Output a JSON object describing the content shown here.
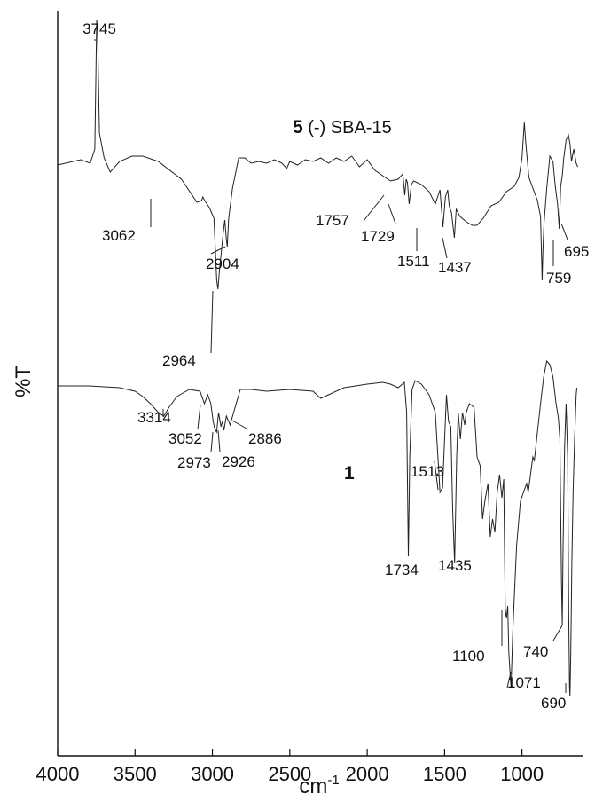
{
  "chart_data": {
    "type": "line",
    "xlabel": "cm",
    "xlabel_sup": "-1",
    "ylabel": "%T",
    "xlim": [
      4000,
      620
    ],
    "x_reversed": true,
    "xticks": [
      4000,
      3500,
      3000,
      2500,
      2000,
      1500,
      1000
    ],
    "grid": false,
    "series": [
      {
        "name_bold": "5",
        "name": " (-) SBA-15",
        "points": [
          [
            4000,
            0
          ],
          [
            3850,
            6
          ],
          [
            3790,
            2
          ],
          [
            3760,
            18
          ],
          [
            3748,
            164
          ],
          [
            3742,
            150
          ],
          [
            3730,
            36
          ],
          [
            3700,
            8
          ],
          [
            3660,
            -8
          ],
          [
            3600,
            4
          ],
          [
            3520,
            10
          ],
          [
            3450,
            10
          ],
          [
            3350,
            4
          ],
          [
            3200,
            -16
          ],
          [
            3100,
            -42
          ],
          [
            3070,
            -40
          ],
          [
            3062,
            -36
          ],
          [
            3050,
            -40
          ],
          [
            3020,
            -48
          ],
          [
            2990,
            -60
          ],
          [
            2972,
            -130
          ],
          [
            2964,
            -140
          ],
          [
            2955,
            -120
          ],
          [
            2930,
            -76
          ],
          [
            2920,
            -62
          ],
          [
            2910,
            -84
          ],
          [
            2904,
            -92
          ],
          [
            2895,
            -60
          ],
          [
            2870,
            -26
          ],
          [
            2830,
            8
          ],
          [
            2790,
            8
          ],
          [
            2750,
            2
          ],
          [
            2700,
            4
          ],
          [
            2650,
            2
          ],
          [
            2600,
            6
          ],
          [
            2550,
            2
          ],
          [
            2520,
            -4
          ],
          [
            2500,
            4
          ],
          [
            2450,
            0
          ],
          [
            2400,
            6
          ],
          [
            2350,
            4
          ],
          [
            2300,
            8
          ],
          [
            2250,
            2
          ],
          [
            2200,
            8
          ],
          [
            2150,
            4
          ],
          [
            2100,
            10
          ],
          [
            2050,
            -2
          ],
          [
            2000,
            6
          ],
          [
            1950,
            -6
          ],
          [
            1900,
            -12
          ],
          [
            1850,
            -18
          ],
          [
            1800,
            -16
          ],
          [
            1770,
            -10
          ],
          [
            1757,
            -34
          ],
          [
            1748,
            -16
          ],
          [
            1740,
            -20
          ],
          [
            1729,
            -44
          ],
          [
            1715,
            -22
          ],
          [
            1700,
            -18
          ],
          [
            1650,
            -22
          ],
          [
            1600,
            -30
          ],
          [
            1560,
            -44
          ],
          [
            1530,
            -28
          ],
          [
            1511,
            -70
          ],
          [
            1495,
            -36
          ],
          [
            1480,
            -28
          ],
          [
            1470,
            -46
          ],
          [
            1455,
            -54
          ],
          [
            1437,
            -82
          ],
          [
            1425,
            -50
          ],
          [
            1400,
            -58
          ],
          [
            1360,
            -64
          ],
          [
            1320,
            -68
          ],
          [
            1290,
            -68
          ],
          [
            1250,
            -60
          ],
          [
            1200,
            -46
          ],
          [
            1150,
            -42
          ],
          [
            1100,
            -30
          ],
          [
            1050,
            -24
          ],
          [
            1020,
            -14
          ],
          [
            1000,
            8
          ],
          [
            985,
            48
          ],
          [
            975,
            24
          ],
          [
            955,
            -14
          ],
          [
            930,
            -26
          ],
          [
            900,
            -40
          ],
          [
            880,
            -58
          ],
          [
            870,
            -130
          ],
          [
            865,
            -98
          ],
          [
            858,
            -66
          ],
          [
            840,
            -26
          ],
          [
            820,
            10
          ],
          [
            800,
            4
          ],
          [
            785,
            -24
          ],
          [
            770,
            -44
          ],
          [
            759,
            -72
          ],
          [
            750,
            -24
          ],
          [
            740,
            -12
          ],
          [
            730,
            8
          ],
          [
            715,
            28
          ],
          [
            700,
            34
          ],
          [
            690,
            24
          ],
          [
            680,
            4
          ],
          [
            665,
            18
          ],
          [
            650,
            2
          ],
          [
            640,
            -2
          ]
        ]
      },
      {
        "name_bold": "1",
        "name": "",
        "points": [
          [
            4000,
            0
          ],
          [
            3800,
            0
          ],
          [
            3600,
            -2
          ],
          [
            3500,
            -6
          ],
          [
            3450,
            -12
          ],
          [
            3400,
            -20
          ],
          [
            3350,
            -30
          ],
          [
            3314,
            -34
          ],
          [
            3280,
            -24
          ],
          [
            3230,
            -12
          ],
          [
            3150,
            -4
          ],
          [
            3080,
            -6
          ],
          [
            3052,
            -20
          ],
          [
            3030,
            -10
          ],
          [
            3010,
            -20
          ],
          [
            2995,
            -40
          ],
          [
            2985,
            -48
          ],
          [
            2973,
            -52
          ],
          [
            2960,
            -30
          ],
          [
            2945,
            -46
          ],
          [
            2935,
            -40
          ],
          [
            2926,
            -50
          ],
          [
            2910,
            -34
          ],
          [
            2895,
            -40
          ],
          [
            2886,
            -44
          ],
          [
            2860,
            -28
          ],
          [
            2820,
            -4
          ],
          [
            2750,
            -4
          ],
          [
            2650,
            -6
          ],
          [
            2500,
            -4
          ],
          [
            2350,
            -6
          ],
          [
            2300,
            -14
          ],
          [
            2250,
            -10
          ],
          [
            2150,
            -2
          ],
          [
            2000,
            2
          ],
          [
            1900,
            4
          ],
          [
            1850,
            2
          ],
          [
            1800,
            -2
          ],
          [
            1760,
            4
          ],
          [
            1745,
            -30
          ],
          [
            1734,
            -192
          ],
          [
            1725,
            -80
          ],
          [
            1710,
            -4
          ],
          [
            1690,
            6
          ],
          [
            1650,
            2
          ],
          [
            1600,
            -10
          ],
          [
            1560,
            -30
          ],
          [
            1530,
            -120
          ],
          [
            1513,
            -115
          ],
          [
            1500,
            -60
          ],
          [
            1488,
            -10
          ],
          [
            1475,
            -40
          ],
          [
            1460,
            -46
          ],
          [
            1448,
            -140
          ],
          [
            1435,
            -200
          ],
          [
            1422,
            -80
          ],
          [
            1412,
            -30
          ],
          [
            1398,
            -60
          ],
          [
            1385,
            -30
          ],
          [
            1370,
            -44
          ],
          [
            1360,
            -30
          ],
          [
            1340,
            -20
          ],
          [
            1310,
            -24
          ],
          [
            1290,
            -80
          ],
          [
            1270,
            -90
          ],
          [
            1255,
            -150
          ],
          [
            1240,
            -130
          ],
          [
            1220,
            -110
          ],
          [
            1205,
            -170
          ],
          [
            1190,
            -150
          ],
          [
            1175,
            -165
          ],
          [
            1160,
            -120
          ],
          [
            1145,
            -100
          ],
          [
            1130,
            -126
          ],
          [
            1118,
            -105
          ],
          [
            1108,
            -252
          ],
          [
            1100,
            -262
          ],
          [
            1092,
            -248
          ],
          [
            1085,
            -300
          ],
          [
            1075,
            -330
          ],
          [
            1071,
            -340
          ],
          [
            1060,
            -280
          ],
          [
            1050,
            -240
          ],
          [
            1035,
            -180
          ],
          [
            1010,
            -130
          ],
          [
            990,
            -120
          ],
          [
            970,
            -110
          ],
          [
            960,
            -120
          ],
          [
            945,
            -100
          ],
          [
            930,
            -80
          ],
          [
            920,
            -84
          ],
          [
            900,
            -52
          ],
          [
            880,
            -20
          ],
          [
            860,
            10
          ],
          [
            840,
            28
          ],
          [
            820,
            24
          ],
          [
            800,
            10
          ],
          [
            780,
            -20
          ],
          [
            765,
            -36
          ],
          [
            755,
            -60
          ],
          [
            745,
            -220
          ],
          [
            740,
            -270
          ],
          [
            735,
            -190
          ],
          [
            725,
            -70
          ],
          [
            715,
            -20
          ],
          [
            705,
            -80
          ],
          [
            698,
            -260
          ],
          [
            693,
            -340
          ],
          [
            690,
            -350
          ],
          [
            685,
            -300
          ],
          [
            678,
            -200
          ],
          [
            670,
            -120
          ],
          [
            660,
            -60
          ],
          [
            650,
            -10
          ],
          [
            645,
            -2
          ]
        ]
      }
    ],
    "annotations": [
      {
        "text": "3745"
      },
      {
        "text": "3062"
      },
      {
        "text": "2964"
      },
      {
        "text": "2904"
      },
      {
        "text": "1757"
      },
      {
        "text": "1729"
      },
      {
        "text": "1511"
      },
      {
        "text": "1437"
      },
      {
        "text": "759"
      },
      {
        "text": "695"
      },
      {
        "text": "3314"
      },
      {
        "text": "3052"
      },
      {
        "text": "2973"
      },
      {
        "text": "2926"
      },
      {
        "text": "2886"
      },
      {
        "text": "1513"
      },
      {
        "text": "1734"
      },
      {
        "text": "1435"
      },
      {
        "text": "1100"
      },
      {
        "text": "740"
      },
      {
        "text": "1071"
      },
      {
        "text": "690"
      }
    ]
  }
}
